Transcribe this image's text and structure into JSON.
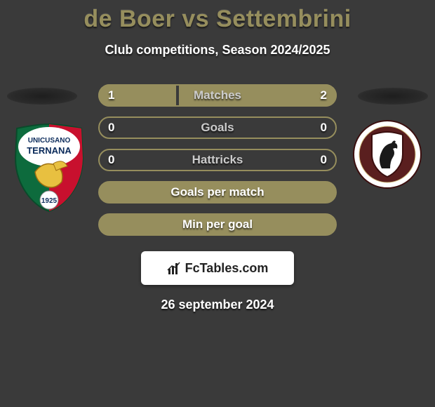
{
  "title": "de Boer vs Settembrini",
  "subtitle": "Club competitions, Season 2024/2025",
  "date": "26 september 2024",
  "brand": "FcTables.com",
  "colors": {
    "bar_border": "#968e5d",
    "bar_fill": "#968e5d",
    "label": "#cccccc",
    "label_full": "#ffffff"
  },
  "club_left": {
    "name": "Unicusano Ternana",
    "shield_top": "#ffffff",
    "shield_green": "#0d6b3d",
    "shield_red": "#c8102e",
    "year": "1925"
  },
  "club_right": {
    "name": "Arezzo",
    "outer": "#ffffff",
    "maroon": "#5a1f1f",
    "shield_border": "#3b0f0f"
  },
  "stats": [
    {
      "label": "Matches",
      "left_val": "1",
      "right_val": "2",
      "left_pct": 33,
      "right_pct": 67,
      "full": false
    },
    {
      "label": "Goals",
      "left_val": "0",
      "right_val": "0",
      "left_pct": 0,
      "right_pct": 0,
      "full": false
    },
    {
      "label": "Hattricks",
      "left_val": "0",
      "right_val": "0",
      "left_pct": 0,
      "right_pct": 0,
      "full": false
    },
    {
      "label": "Goals per match",
      "left_val": "",
      "right_val": "",
      "left_pct": 100,
      "right_pct": 0,
      "full": true
    },
    {
      "label": "Min per goal",
      "left_val": "",
      "right_val": "",
      "left_pct": 100,
      "right_pct": 0,
      "full": true
    }
  ]
}
